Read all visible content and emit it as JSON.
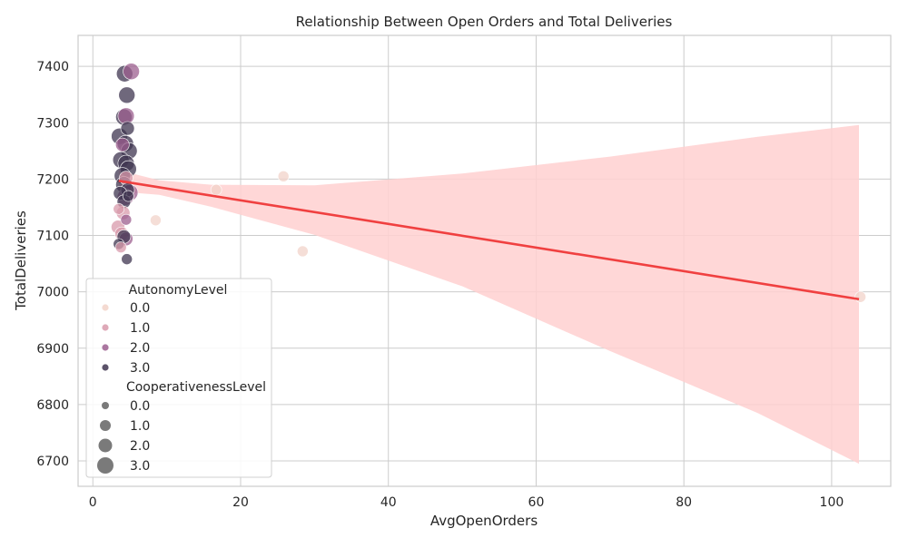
{
  "chart_data": {
    "type": "scatter",
    "title": "Relationship Between Open Orders and Total Deliveries",
    "xlabel": "AvgOpenOrders",
    "ylabel": "TotalDeliveries",
    "xlim": [
      -2,
      108
    ],
    "ylim": [
      6655,
      7455
    ],
    "x_ticks": [
      0,
      20,
      40,
      60,
      80,
      100
    ],
    "y_ticks": [
      6700,
      6800,
      6900,
      7000,
      7100,
      7200,
      7300,
      7400
    ],
    "grid": true,
    "hue_field": "AutonomyLevel",
    "size_field": "CooperativenessLevel",
    "hue_colors": {
      "0.0": "#f2d3c9",
      "1.0": "#d89aab",
      "2.0": "#9c5f8f",
      "3.0": "#3f3550"
    },
    "size_radii": {
      "0.0": 4,
      "1.0": 6,
      "2.0": 7.5,
      "3.0": 9
    },
    "points": [
      {
        "x": 4.3,
        "y": 7387,
        "hue": 3,
        "size": 3
      },
      {
        "x": 5.2,
        "y": 7391,
        "hue": 2,
        "size": 3
      },
      {
        "x": 4.6,
        "y": 7349,
        "hue": 3,
        "size": 3
      },
      {
        "x": 4.2,
        "y": 7310,
        "hue": 3,
        "size": 3
      },
      {
        "x": 4.5,
        "y": 7312,
        "hue": 2,
        "size": 3
      },
      {
        "x": 4.7,
        "y": 7290,
        "hue": 3,
        "size": 2
      },
      {
        "x": 3.6,
        "y": 7276,
        "hue": 3,
        "size": 3
      },
      {
        "x": 4.0,
        "y": 7261,
        "hue": 2,
        "size": 2
      },
      {
        "x": 4.4,
        "y": 7263,
        "hue": 3,
        "size": 3
      },
      {
        "x": 4.9,
        "y": 7250,
        "hue": 3,
        "size": 3
      },
      {
        "x": 3.8,
        "y": 7234,
        "hue": 3,
        "size": 3
      },
      {
        "x": 4.5,
        "y": 7228,
        "hue": 3,
        "size": 3
      },
      {
        "x": 4.8,
        "y": 7218,
        "hue": 3,
        "size": 3
      },
      {
        "x": 4.0,
        "y": 7206,
        "hue": 3,
        "size": 3
      },
      {
        "x": 4.5,
        "y": 7202,
        "hue": 1,
        "size": 2
      },
      {
        "x": 4.2,
        "y": 7190,
        "hue": 3,
        "size": 3
      },
      {
        "x": 4.7,
        "y": 7181,
        "hue": 3,
        "size": 2
      },
      {
        "x": 3.7,
        "y": 7175,
        "hue": 3,
        "size": 2
      },
      {
        "x": 5.0,
        "y": 7176,
        "hue": 2,
        "size": 3
      },
      {
        "x": 4.4,
        "y": 7168,
        "hue": 2,
        "size": 3
      },
      {
        "x": 4.8,
        "y": 7170,
        "hue": 3,
        "size": 1
      },
      {
        "x": 4.2,
        "y": 7160,
        "hue": 3,
        "size": 2
      },
      {
        "x": 3.5,
        "y": 7147,
        "hue": 1,
        "size": 1
      },
      {
        "x": 4.1,
        "y": 7140,
        "hue": 1,
        "size": 2
      },
      {
        "x": 4.5,
        "y": 7128,
        "hue": 2,
        "size": 1
      },
      {
        "x": 3.4,
        "y": 7115,
        "hue": 1,
        "size": 2
      },
      {
        "x": 3.9,
        "y": 7103,
        "hue": 1,
        "size": 2
      },
      {
        "x": 4.5,
        "y": 7094,
        "hue": 2,
        "size": 2
      },
      {
        "x": 4.2,
        "y": 7098,
        "hue": 3,
        "size": 2
      },
      {
        "x": 3.5,
        "y": 7085,
        "hue": 3,
        "size": 1
      },
      {
        "x": 3.8,
        "y": 7079,
        "hue": 1,
        "size": 1
      },
      {
        "x": 4.6,
        "y": 7058,
        "hue": 3,
        "size": 1
      },
      {
        "x": 8.5,
        "y": 7127,
        "hue": 0,
        "size": 1
      },
      {
        "x": 16.7,
        "y": 7181,
        "hue": 0,
        "size": 1
      },
      {
        "x": 25.8,
        "y": 7205,
        "hue": 0,
        "size": 1
      },
      {
        "x": 28.4,
        "y": 7072,
        "hue": 0,
        "size": 1
      },
      {
        "x": 103.9,
        "y": 6991,
        "hue": 0,
        "size": 1
      }
    ],
    "regression": {
      "color": "#f04040",
      "start": {
        "x": 3.5,
        "y": 7197
      },
      "end": {
        "x": 103.7,
        "y": 6987
      },
      "ci_color": "#ffd0d0",
      "ci_band": [
        {
          "x": 3.5,
          "lo": 7178,
          "hi": 7216
        },
        {
          "x": 9,
          "lo": 7172,
          "hi": 7198
        },
        {
          "x": 16,
          "lo": 7151,
          "hi": 7190
        },
        {
          "x": 30,
          "lo": 7101,
          "hi": 7189
        },
        {
          "x": 50,
          "lo": 7010,
          "hi": 7210
        },
        {
          "x": 70,
          "lo": 6895,
          "hi": 7240
        },
        {
          "x": 90,
          "lo": 6785,
          "hi": 7275
        },
        {
          "x": 103.7,
          "lo": 6695,
          "hi": 7296
        }
      ]
    },
    "legend": {
      "placement": "lower-left",
      "hue_title": "AutonomyLevel",
      "hue_entries": [
        "0.0",
        "1.0",
        "2.0",
        "3.0"
      ],
      "size_title": "CooperativenessLevel",
      "size_entries": [
        "0.0",
        "1.0",
        "2.0",
        "3.0"
      ],
      "size_marker_color": "#6b6b6b"
    }
  }
}
